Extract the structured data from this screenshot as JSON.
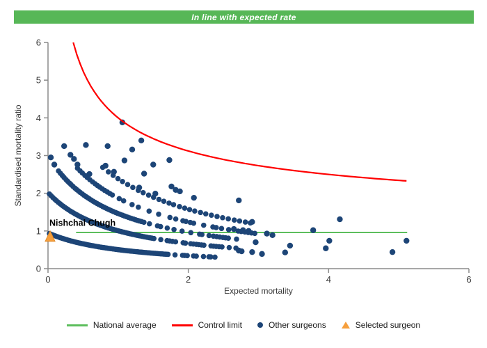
{
  "header": {
    "title": "In line with expected rate",
    "bg_color": "#57B757",
    "text_color": "#FFFFFF"
  },
  "chart_data": {
    "type": "scatter",
    "title": "In line with expected rate",
    "xlabel": "Expected mortality",
    "ylabel": "Standardised mortality ratio",
    "xlim": [
      0,
      6
    ],
    "ylim": [
      0,
      6
    ],
    "x_ticks": [
      "0",
      "2",
      "4",
      "6"
    ],
    "y_ticks": [
      "0",
      "1",
      "2",
      "3",
      "4",
      "5",
      "6"
    ],
    "grid": false,
    "legend_position": "bottom",
    "colors": {
      "other_surgeons": "#1D4577",
      "national_average": "#5CBE5C",
      "control_limit": "#FF0000",
      "selected_surgeon": "#F69F3C",
      "selected_surgeon_edge": "#E08A28",
      "axis": "#8C8C8C",
      "tick_text": "#3a3a3a"
    },
    "national_average": {
      "y": 1,
      "x_start": 0.4,
      "x_end": 5.12
    },
    "control_limit": {
      "formula": "y = 1 + 3/sqrt(x)",
      "k": 3,
      "x_start": 0.36,
      "x_end": 5.13
    },
    "selected_surgeon": {
      "label": "Nishchal Chugh",
      "x": 0.03,
      "y": 0.85
    },
    "other_surgeons": {
      "note": "dense curved bands of overlapping surgeon points; each band approximated by y = a/(x+c), becoming dashed/sparse beyond solid_until",
      "bands": [
        {
          "a": 1.08,
          "c": 1.14,
          "x_start": 0.02,
          "x_end": 2.45,
          "step": 0.022,
          "solid_until": 1.7
        },
        {
          "a": 2.0,
          "c": 0.99,
          "x_start": 0.02,
          "x_end": 2.7,
          "step": 0.024,
          "solid_until": 1.5
        },
        {
          "a": 2.85,
          "c": 0.95,
          "x_start": 0.15,
          "x_end": 2.75,
          "step": 0.026,
          "solid_until": 1.3
        },
        {
          "a": 3.65,
          "c": 0.95,
          "x_start": 0.42,
          "x_end": 2.95,
          "step": 0.034,
          "solid_until": 0.9
        },
        {
          "a": 4.65,
          "c": 0.95,
          "x_start": 0.78,
          "x_end": 2.95,
          "step": 0.075,
          "solid_until": 3.0
        }
      ],
      "points": [
        [
          0.04,
          2.95
        ],
        [
          0.09,
          2.76
        ],
        [
          0.23,
          3.25
        ],
        [
          0.32,
          3.02
        ],
        [
          0.37,
          2.91
        ],
        [
          0.42,
          2.76
        ],
        [
          0.54,
          3.28
        ],
        [
          0.59,
          2.51
        ],
        [
          0.82,
          2.73
        ],
        [
          0.85,
          3.25
        ],
        [
          0.94,
          2.57
        ],
        [
          1.06,
          3.88
        ],
        [
          1.09,
          2.87
        ],
        [
          1.2,
          3.16
        ],
        [
          1.3,
          2.15
        ],
        [
          1.33,
          3.4
        ],
        [
          1.37,
          2.52
        ],
        [
          1.5,
          2.76
        ],
        [
          1.53,
          1.99
        ],
        [
          1.73,
          2.88
        ],
        [
          1.76,
          2.18
        ],
        [
          1.82,
          2.09
        ],
        [
          1.88,
          2.05
        ],
        [
          2.08,
          1.88
        ],
        [
          2.72,
          1.81
        ],
        [
          2.91,
          1.24
        ],
        [
          2.65,
          1.05
        ],
        [
          2.78,
          1.02
        ],
        [
          2.86,
          1.0
        ],
        [
          3.12,
          0.93
        ],
        [
          3.2,
          0.89
        ],
        [
          2.96,
          0.7
        ],
        [
          3.45,
          0.61
        ],
        [
          3.38,
          0.43
        ],
        [
          2.72,
          0.48
        ],
        [
          2.76,
          0.46
        ],
        [
          2.91,
          0.44
        ],
        [
          3.05,
          0.39
        ],
        [
          3.78,
          1.02
        ],
        [
          4.01,
          0.74
        ],
        [
          3.96,
          0.54
        ],
        [
          4.16,
          1.31
        ],
        [
          4.91,
          0.44
        ],
        [
          5.11,
          0.74
        ]
      ]
    },
    "legend": [
      {
        "label": "National average",
        "swatch": "line",
        "color": "#5CBE5C"
      },
      {
        "label": "Control limit",
        "swatch": "line",
        "color": "#FF0000"
      },
      {
        "label": "Other surgeons",
        "swatch": "dot",
        "color": "#1D4577"
      },
      {
        "label": "Selected surgeon",
        "swatch": "triangle",
        "color": "#F69F3C"
      }
    ]
  }
}
